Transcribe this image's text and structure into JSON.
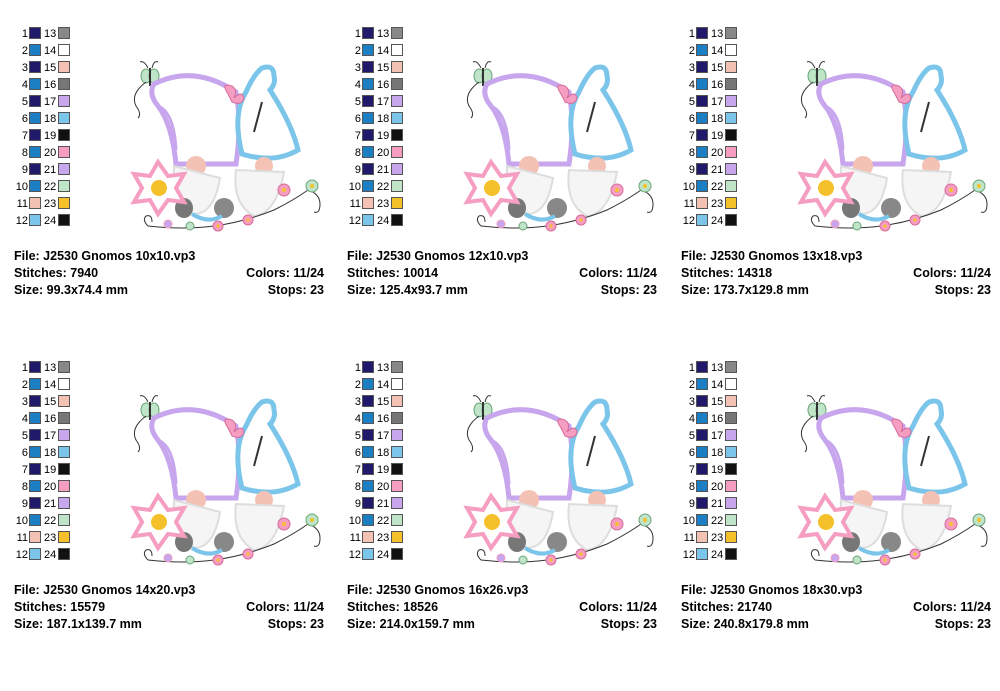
{
  "palette": [
    {
      "n1": "1",
      "c1": "#211a6b",
      "n2": "13",
      "c2": "#888888"
    },
    {
      "n1": "2",
      "c1": "#1c7fc4",
      "n2": "14",
      "c2": "#ffffff"
    },
    {
      "n1": "3",
      "c1": "#211a6b",
      "n2": "15",
      "c2": "#f4c2b4"
    },
    {
      "n1": "4",
      "c1": "#1c7fc4",
      "n2": "16",
      "c2": "#777777"
    },
    {
      "n1": "5",
      "c1": "#211a6b",
      "n2": "17",
      "c2": "#c7a6ee"
    },
    {
      "n1": "6",
      "c1": "#1c7fc4",
      "n2": "18",
      "c2": "#7cc5ea"
    },
    {
      "n1": "7",
      "c1": "#211a6b",
      "n2": "19",
      "c2": "#111111"
    },
    {
      "n1": "8",
      "c1": "#1c7fc4",
      "n2": "20",
      "c2": "#f59ec2"
    },
    {
      "n1": "9",
      "c1": "#211a6b",
      "n2": "21",
      "c2": "#c7a6ee"
    },
    {
      "n1": "10",
      "c1": "#1c7fc4",
      "n2": "22",
      "c2": "#bfe4c8"
    },
    {
      "n1": "11",
      "c1": "#f4c2b4",
      "n2": "23",
      "c2": "#f5c12a"
    },
    {
      "n1": "12",
      "c1": "#7cc5ea",
      "n2": "24",
      "c2": "#111111"
    }
  ],
  "designs": [
    {
      "file": "File: J2530 Gnomos 10x10.vp3",
      "stitches": "Stitches: 7940",
      "colors": "Colors: 11/24",
      "size": "Size: 99.3x74.4 mm",
      "stops": "Stops: 23"
    },
    {
      "file": "File: J2530 Gnomos 12x10.vp3",
      "stitches": "Stitches: 10014",
      "colors": "Colors: 11/24",
      "size": "Size: 125.4x93.7 mm",
      "stops": "Stops: 23"
    },
    {
      "file": "File: J2530 Gnomos 13x18.vp3",
      "stitches": "Stitches: 14318",
      "colors": "Colors: 11/24",
      "size": "Size: 173.7x129.8 mm",
      "stops": "Stops: 23"
    },
    {
      "file": "File: J2530 Gnomos 14x20.vp3",
      "stitches": "Stitches: 15579",
      "colors": "Colors: 11/24",
      "size": "Size: 187.1x139.7 mm",
      "stops": "Stops: 23"
    },
    {
      "file": "File: J2530 Gnomos 16x26.vp3",
      "stitches": "Stitches: 18526",
      "colors": "Colors: 11/24",
      "size": "Size: 214.0x159.7 mm",
      "stops": "Stops: 23"
    },
    {
      "file": "File: J2530 Gnomos 18x30.vp3",
      "stitches": "Stitches: 21740",
      "colors": "Colors: 11/24",
      "size": "Size: 240.8x179.8 mm",
      "stops": "Stops: 23"
    }
  ]
}
